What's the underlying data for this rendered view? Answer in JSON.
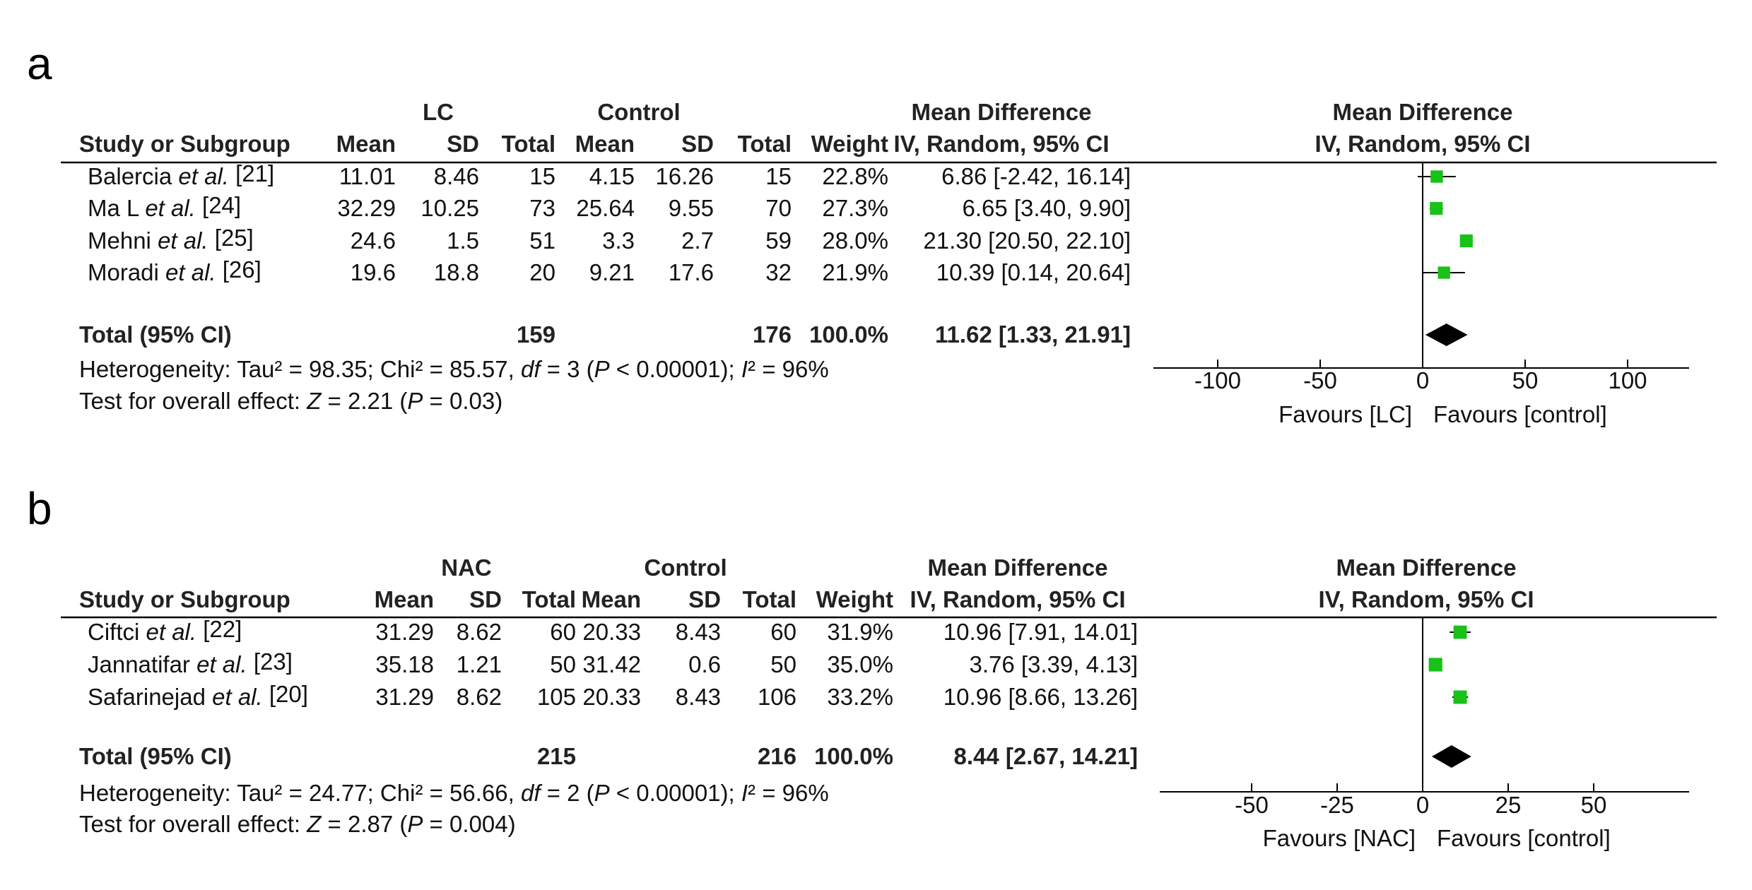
{
  "chart_data": [
    {
      "type": "forest",
      "panel_label": "a",
      "group_label": "LC",
      "control_label": "Control",
      "columns": {
        "study": "Study or Subgroup",
        "mean": "Mean",
        "sd": "SD",
        "total": "Total",
        "weight": "Weight",
        "effect_header": "Mean Difference",
        "effect_subheader": "IV, Random, 95% CI"
      },
      "studies": [
        {
          "name": "Balercia",
          "etal": "et al.",
          "ref": "[21]",
          "mean": "11.01",
          "sd": "8.46",
          "total": "15",
          "c_mean": "4.15",
          "c_sd": "16.26",
          "c_total": "15",
          "weight": "22.8%",
          "ci_text": "6.86 [-2.42, 16.14]",
          "md": 6.86,
          "lo": -2.42,
          "hi": 16.14
        },
        {
          "name": "Ma L",
          "etal": "et al.",
          "ref": "[24]",
          "mean": "32.29",
          "sd": "10.25",
          "total": "73",
          "c_mean": "25.64",
          "c_sd": "9.55",
          "c_total": "70",
          "weight": "27.3%",
          "ci_text": "6.65 [3.40, 9.90]",
          "md": 6.65,
          "lo": 3.4,
          "hi": 9.9
        },
        {
          "name": "Mehni",
          "etal": "et al.",
          "ref": "[25]",
          "mean": "24.6",
          "sd": "1.5",
          "total": "51",
          "c_mean": "3.3",
          "c_sd": "2.7",
          "c_total": "59",
          "weight": "28.0%",
          "ci_text": "21.30 [20.50, 22.10]",
          "md": 21.3,
          "lo": 20.5,
          "hi": 22.1
        },
        {
          "name": "Moradi",
          "etal": "et al.",
          "ref": "[26]",
          "mean": "19.6",
          "sd": "18.8",
          "total": "20",
          "c_mean": "9.21",
          "c_sd": "17.6",
          "c_total": "32",
          "weight": "21.9%",
          "ci_text": "10.39 [0.14, 20.64]",
          "md": 10.39,
          "lo": 0.14,
          "hi": 20.64
        }
      ],
      "total": {
        "label": "Total (95% CI)",
        "total": "159",
        "c_total": "176",
        "weight": "100.0%",
        "ci_text": "11.62 [1.33, 21.91]",
        "md": 11.62,
        "lo": 1.33,
        "hi": 21.91
      },
      "heterogeneity": {
        "prefix": "Heterogeneity: Tau² = 98.35; Chi² = 85.57, ",
        "df_sym": "df",
        "df_val": " = 3 (",
        "p_sym": "P",
        "p_val": " < 0.00001); ",
        "i_sym": "I",
        "i_val": "² = 96%"
      },
      "overall": {
        "prefix": "Test for overall effect: ",
        "z_sym": "Z",
        "z_val": " = 2.21 (",
        "p_sym": "P",
        "p_val": " = 0.03)"
      },
      "axis": {
        "ticks": [
          -100,
          -50,
          0,
          50,
          100
        ],
        "xlim": [
          -100,
          100
        ],
        "favours_left": "Favours [LC]",
        "favours_right": "Favours [control]"
      }
    },
    {
      "type": "forest",
      "panel_label": "b",
      "group_label": "NAC",
      "control_label": "Control",
      "columns": {
        "study": "Study or Subgroup",
        "mean": "Mean",
        "sd": "SD",
        "total": "Total",
        "weight": "Weight",
        "effect_header": "Mean Difference",
        "effect_subheader": "IV, Random, 95% CI"
      },
      "studies": [
        {
          "name": "Ciftci",
          "etal": "et al.",
          "ref": "[22]",
          "mean": "31.29",
          "sd": "8.62",
          "total": "60",
          "c_mean": "20.33",
          "c_sd": "8.43",
          "c_total": "60",
          "weight": "31.9%",
          "ci_text": "10.96 [7.91, 14.01]",
          "md": 10.96,
          "lo": 7.91,
          "hi": 14.01
        },
        {
          "name": "Jannatifar",
          "etal": "et al.",
          "ref": "[23]",
          "mean": "35.18",
          "sd": "1.21",
          "total": "50",
          "c_mean": "31.42",
          "c_sd": "0.6",
          "c_total": "50",
          "weight": "35.0%",
          "ci_text": "3.76 [3.39, 4.13]",
          "md": 3.76,
          "lo": 3.39,
          "hi": 4.13
        },
        {
          "name": "Safarinejad",
          "etal": "et al.",
          "ref": "[20]",
          "mean": "31.29",
          "sd": "8.62",
          "total": "105",
          "c_mean": "20.33",
          "c_sd": "8.43",
          "c_total": "106",
          "weight": "33.2%",
          "ci_text": "10.96 [8.66, 13.26]",
          "md": 10.96,
          "lo": 8.66,
          "hi": 13.26
        }
      ],
      "total": {
        "label": "Total (95% CI)",
        "total": "215",
        "c_total": "216",
        "weight": "100.0%",
        "ci_text": "8.44 [2.67, 14.21]",
        "md": 8.44,
        "lo": 2.67,
        "hi": 14.21
      },
      "heterogeneity": {
        "prefix": "Heterogeneity: Tau² = 24.77; Chi² = 56.66, ",
        "df_sym": "df",
        "df_val": " = 2 (",
        "p_sym": "P",
        "p_val": " < 0.00001); ",
        "i_sym": "I",
        "i_val": "² = 96%"
      },
      "overall": {
        "prefix": "Test for overall effect: ",
        "z_sym": "Z",
        "z_val": " = 2.87 (",
        "p_sym": "P",
        "p_val": " = 0.004)"
      },
      "axis": {
        "ticks": [
          -50,
          -25,
          0,
          25,
          50
        ],
        "xlim": [
          -50,
          50
        ],
        "favours_left": "Favours [NAC]",
        "favours_right": "Favours [control]"
      }
    }
  ],
  "colors": {
    "marker": "#19c119",
    "diamond": "#000000",
    "line": "#000000",
    "text": "#111111"
  }
}
